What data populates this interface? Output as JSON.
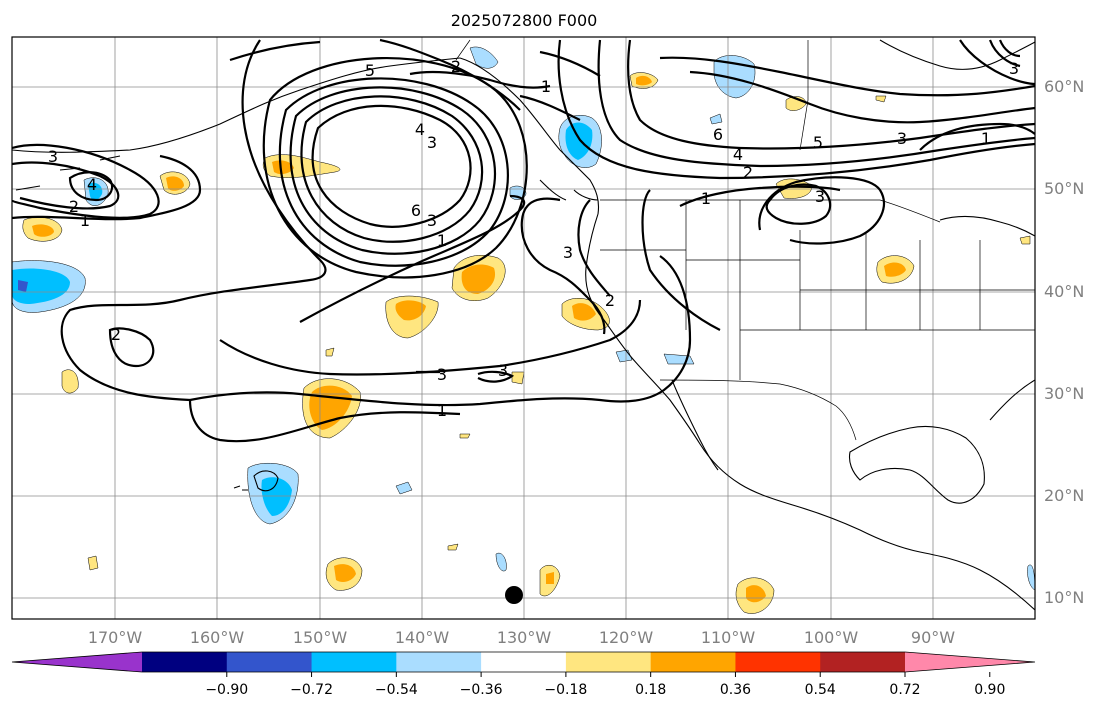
{
  "title": "2025072800 F000",
  "map": {
    "lon_range": [
      -180,
      -80
    ],
    "lat_range": [
      8,
      65
    ],
    "lat_labels": [
      "10°N",
      "20°N",
      "30°N",
      "40°N",
      "50°N",
      "60°N"
    ],
    "lon_labels": [
      "170°W",
      "160°W",
      "150°W",
      "140°W",
      "130°W",
      "120°W",
      "110°W",
      "100°W",
      "90°W"
    ],
    "contour_labels": [
      {
        "text": "3",
        "name": "contour-label-3-west"
      },
      {
        "text": "4",
        "name": "contour-label-4-west"
      },
      {
        "text": "2",
        "name": "contour-label-2-west"
      },
      {
        "text": "1",
        "name": "contour-label-1-west"
      },
      {
        "text": "5",
        "name": "contour-label-5-gulf"
      },
      {
        "text": "2",
        "name": "contour-label-2-gulf"
      },
      {
        "text": "1",
        "name": "contour-label-1-north"
      },
      {
        "text": "4",
        "name": "contour-label-4-gulf"
      },
      {
        "text": "3",
        "name": "contour-label-3-gulf"
      },
      {
        "text": "6",
        "name": "contour-label-6-gulf"
      },
      {
        "text": "3",
        "name": "contour-label-3-gulf-south"
      },
      {
        "text": "1",
        "name": "contour-label-1-gulf-south"
      },
      {
        "text": "2",
        "name": "contour-label-2-pacific"
      },
      {
        "text": "3",
        "name": "contour-label-3-pacific-a"
      },
      {
        "text": "3",
        "name": "contour-label-3-pacific-b"
      },
      {
        "text": "1",
        "name": "contour-label-1-pacific"
      },
      {
        "text": "3",
        "name": "contour-label-3-coast"
      },
      {
        "text": "2",
        "name": "contour-label-2-california"
      },
      {
        "text": "6",
        "name": "contour-label-6-canada"
      },
      {
        "text": "4",
        "name": "contour-label-4-canada"
      },
      {
        "text": "2",
        "name": "contour-label-2-canada"
      },
      {
        "text": "5",
        "name": "contour-label-5-canada"
      },
      {
        "text": "3",
        "name": "contour-label-3-canada"
      },
      {
        "text": "1",
        "name": "contour-label-1-canada"
      },
      {
        "text": "1",
        "name": "contour-label-1-rockies"
      },
      {
        "text": "3",
        "name": "contour-label-3-plains"
      },
      {
        "text": "3",
        "name": "contour-label-3-northeast"
      }
    ],
    "colors": {
      "purple": "#9933cc",
      "navy": "#000080",
      "blue": "#3355cc",
      "sky": "#00bfff",
      "light_blue": "#aaddff",
      "white": "#ffffff",
      "light_yellow": "#ffe680",
      "orange": "#ffa500",
      "red_orange": "#ff3300",
      "dark_red": "#b22222",
      "pink": "#ff88aa"
    }
  },
  "colorbar": {
    "ticks": [
      "−0.90",
      "−0.72",
      "−0.54",
      "−0.36",
      "−0.18",
      "0.18",
      "0.36",
      "0.54",
      "0.72",
      "0.90"
    ],
    "colors": [
      "#9933cc",
      "#000080",
      "#3355cc",
      "#00bfff",
      "#aaddff",
      "#ffffff",
      "#ffe680",
      "#ffa500",
      "#ff3300",
      "#b22222",
      "#ff88aa"
    ]
  }
}
